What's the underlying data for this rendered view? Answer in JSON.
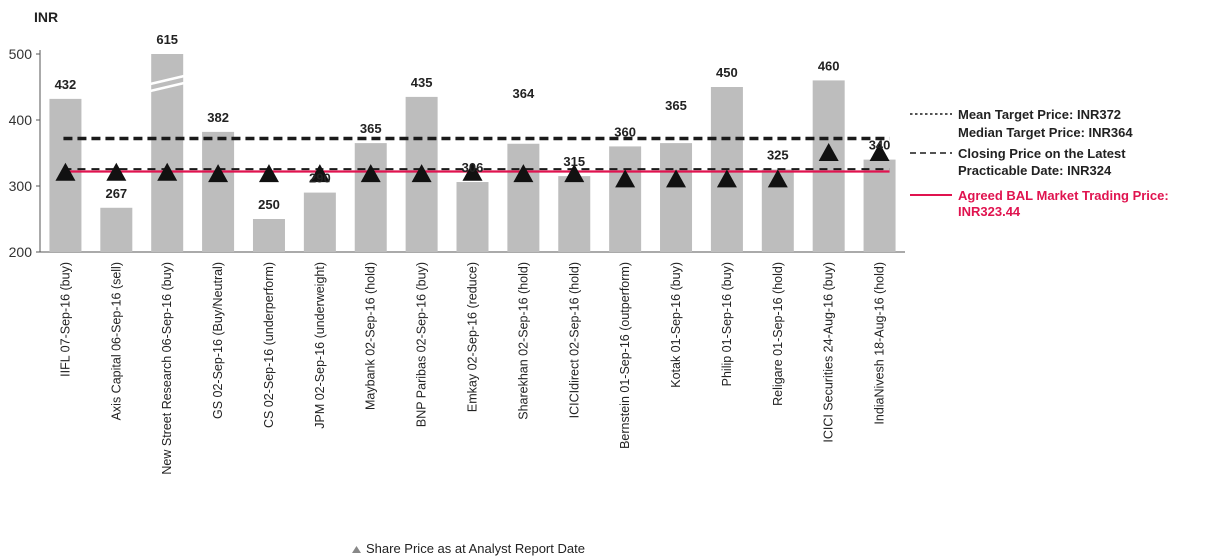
{
  "chart_data": {
    "type": "bar",
    "y_unit_label": "INR",
    "ylim": [
      200,
      500
    ],
    "yticks": [
      200,
      300,
      400,
      500
    ],
    "categories": [
      "IIFL 07-Sep-16 (buy)",
      "Axis Capital 06-Sep-16 (sell)",
      "New Street Research 06-Sep-16 (buy)",
      "GS 02-Sep-16 (Buy/Neutral)",
      "CS 02-Sep-16 (underperform)",
      "JPM 02-Sep-16 (underweight)",
      "Maybank 02-Sep-16 (hold)",
      "BNP Paribas 02-Sep-16 (buy)",
      "Emkay 02-Sep-16 (reduce)",
      "Sharekhan 02-Sep-16 (hold)",
      "ICICIdirect 02-Sep-16 (hold)",
      "Bernstein 01-Sep-16 (outperform)",
      "Kotak 01-Sep-16 (buy)",
      "Philip  01-Sep-16 (buy)",
      "Religare 01-Sep-16 (hold)",
      "ICICI Securities 24-Aug-16 (buy)",
      "IndiaNivesh 18-Aug-16 (hold)"
    ],
    "target_prices": [
      432,
      267,
      615,
      382,
      250,
      290,
      365,
      435,
      306,
      364,
      315,
      360,
      365,
      450,
      325,
      460,
      340
    ],
    "value_labels": [
      "432",
      "267",
      "615",
      "382",
      "250",
      "290",
      "365",
      "435",
      "306",
      "364",
      "315",
      "360",
      "365",
      "450",
      "325",
      "460",
      "340"
    ],
    "broken_axis_bar_index": 2,
    "share_prices": [
      320,
      320,
      320,
      318,
      318,
      318,
      318,
      318,
      320,
      318,
      318,
      310,
      310,
      310,
      310,
      350,
      350
    ],
    "lines": {
      "mean_target": 372,
      "closing_price": 324,
      "agreed_bal_price": 323.44
    },
    "colors": {
      "bar": "#bdbdbd",
      "line_black": "#1a1a1a",
      "line_red": "#e0134f",
      "marker": "#111111"
    },
    "legend": {
      "mean": "Mean Target Price: INR372",
      "median": "Median Target Price: INR364",
      "closing_1": "Closing Price on the Latest",
      "closing_2": "Practicable Date: INR324",
      "agreed_1": "Agreed BAL Market Trading Price:",
      "agreed_2": "INR323.44"
    },
    "footnote": "Share Price as at Analyst Report Date"
  }
}
